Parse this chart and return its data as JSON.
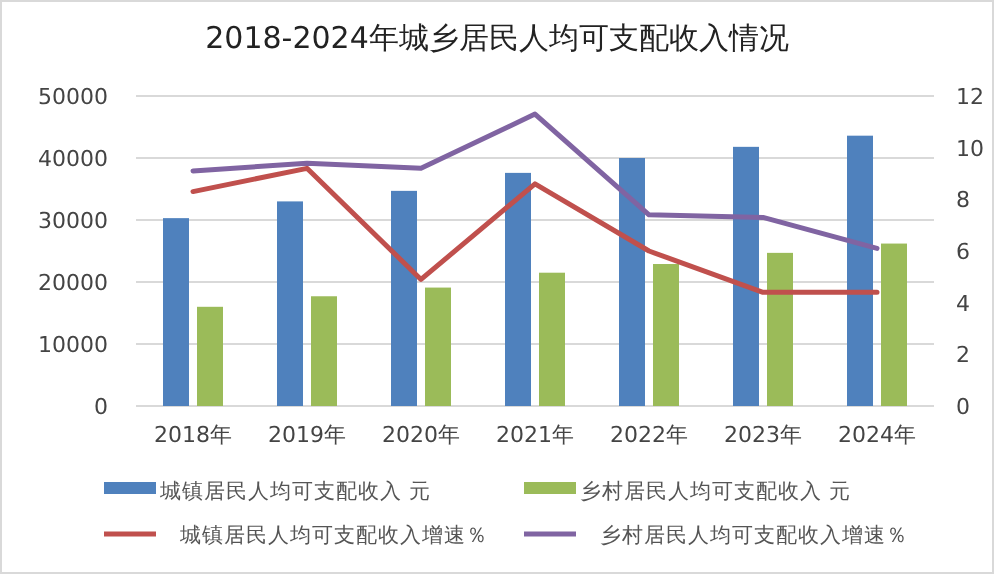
{
  "chart_data": {
    "type": "bar",
    "title": "2018-2024年城乡居民人均可支配收入情况",
    "categories": [
      "2018年",
      "2019年",
      "2020年",
      "2021年",
      "2022年",
      "2023年",
      "2024年"
    ],
    "series": [
      {
        "name": "城镇居民人均可支配收入 元",
        "color": "#4f81bd",
        "values": [
          30300,
          33000,
          34700,
          37600,
          40000,
          41800,
          43600
        ]
      },
      {
        "name": "乡村居民人均可支配收入 元",
        "color": "#9bbb59",
        "values": [
          16000,
          17700,
          19100,
          21500,
          22900,
          24700,
          26200
        ]
      },
      {
        "name": "城镇居民人均可支配收入增速％",
        "type": "line",
        "axis": "y2",
        "color": "#c0504d",
        "values": [
          8.3,
          9.2,
          4.9,
          8.6,
          6.0,
          4.4,
          4.4
        ]
      },
      {
        "name": "乡村居民人均可支配收入增速％",
        "type": "line",
        "axis": "y2",
        "color": "#8064a2",
        "values": [
          9.1,
          9.4,
          9.2,
          11.3,
          7.4,
          7.3,
          6.1
        ]
      }
    ],
    "ylim": [
      0,
      50000
    ],
    "yticks": [
      0,
      10000,
      20000,
      30000,
      40000,
      50000
    ],
    "y2lim": [
      0,
      12
    ],
    "y2ticks": [
      0,
      2,
      4,
      6,
      8,
      10,
      12
    ],
    "grid": "y",
    "legend": "bottom"
  }
}
